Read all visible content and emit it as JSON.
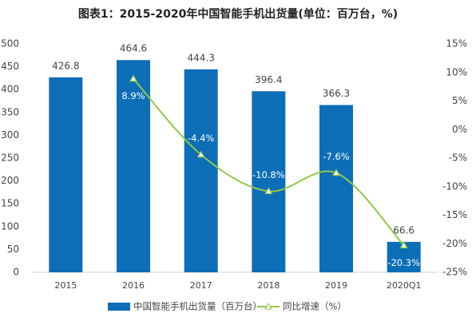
{
  "chart_data": {
    "type": "bar",
    "title": "图表1：2015-2020年中国智能手机出货量(单位：百万台，%)",
    "categories": [
      "2015",
      "2016",
      "2017",
      "2018",
      "2019",
      "2020Q1"
    ],
    "series": [
      {
        "name": "中国智能手机出货量（百万台）",
        "color": "#0d6eb8",
        "values": [
          426.8,
          464.6,
          444.3,
          396.4,
          366.3,
          66.6
        ]
      },
      {
        "name": "同比增速（%）",
        "type": "line",
        "axis": "y2",
        "color": "#92c847",
        "values": [
          null,
          8.9,
          -4.4,
          -10.8,
          -7.6,
          -20.3
        ],
        "value_labels": [
          null,
          "8.9%",
          "-4.4%",
          "-10.8%",
          "-7.6%",
          "-20.3%"
        ]
      }
    ],
    "ylim": [
      0,
      500
    ],
    "yticks": [
      0,
      50,
      100,
      150,
      200,
      250,
      300,
      350,
      400,
      450,
      500
    ],
    "y2lim": [
      -25,
      15
    ],
    "y2ticks": [
      {
        "value": -25,
        "label": "-25%"
      },
      {
        "value": -20,
        "label": "-20%"
      },
      {
        "value": -15,
        "label": "-15%"
      },
      {
        "value": -10,
        "label": "-10%"
      },
      {
        "value": -5,
        "label": "-5%"
      },
      {
        "value": 0,
        "label": "0%"
      },
      {
        "value": 5,
        "label": "5%"
      },
      {
        "value": 10,
        "label": "10%"
      },
      {
        "value": 15,
        "label": "15%"
      }
    ],
    "grid": false
  }
}
